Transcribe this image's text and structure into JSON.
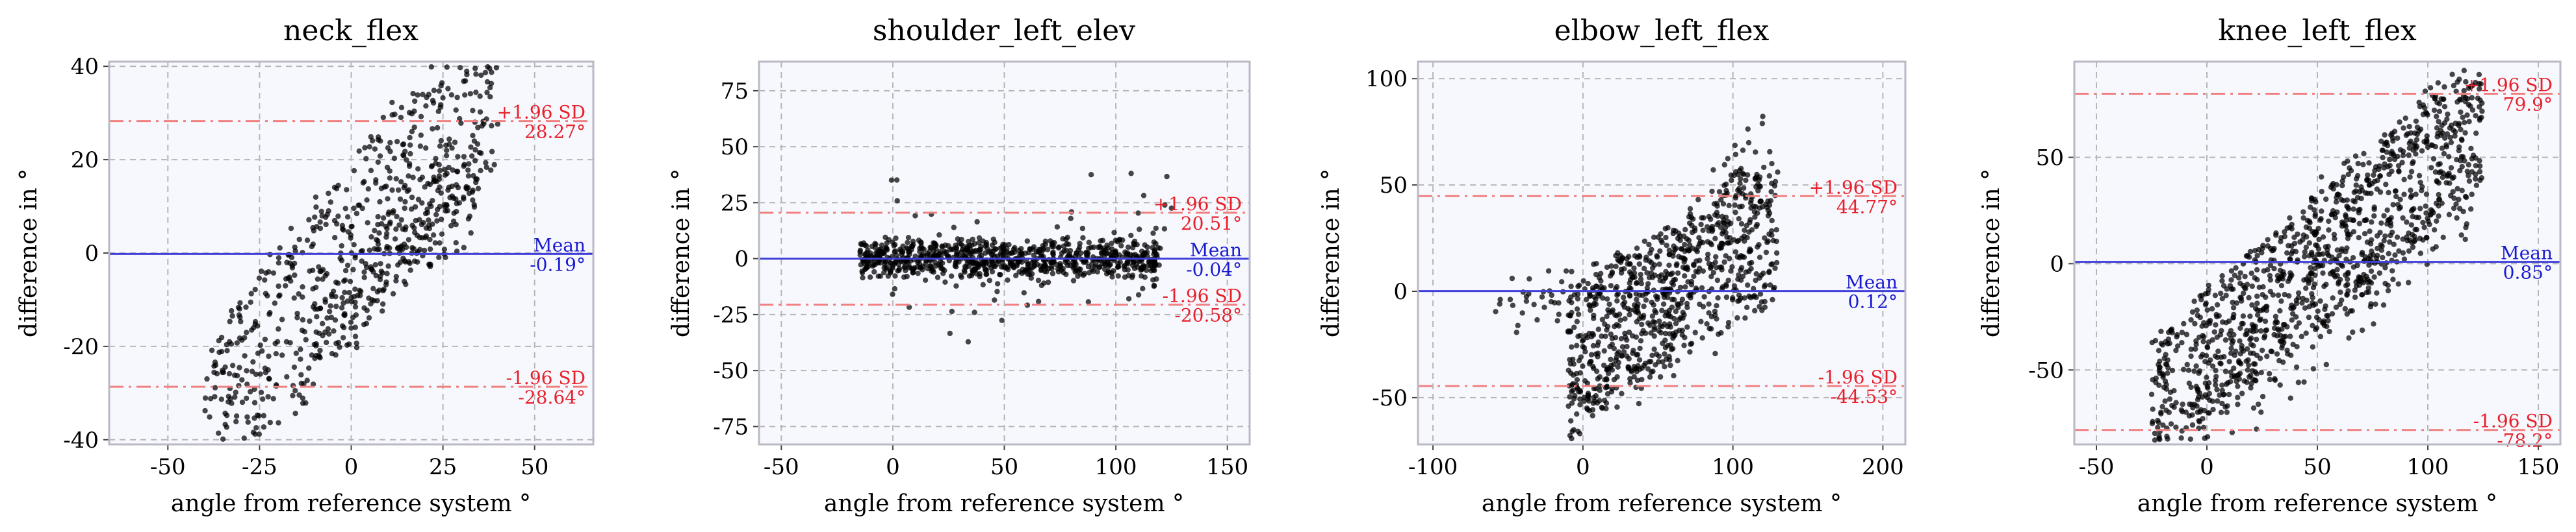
{
  "figure": {
    "colors": {
      "mean": "#3f3fd9",
      "limit": "#f08080",
      "annotation_limit": "#e8202a",
      "annotation_mean": "#1a1ad0",
      "point": "#000000"
    }
  },
  "chart_data": [
    {
      "type": "scatter",
      "title": "neck_flex",
      "xlabel": "angle from reference system °",
      "ylabel": "difference in °",
      "xlim": [
        -66,
        66
      ],
      "ylim": [
        -41,
        41
      ],
      "xticks": [
        -50,
        -25,
        0,
        25,
        50
      ],
      "yticks": [
        -40,
        -20,
        0,
        20,
        40
      ],
      "xtick_labels": [
        "-50",
        "-25",
        "0",
        "25",
        "50"
      ],
      "ytick_labels": [
        "-40",
        "-20",
        "0",
        "20",
        "40"
      ],
      "mean": -0.19,
      "upper_loa": 28.27,
      "lower_loa": -28.64,
      "annotations": {
        "upper_label": "+1.96 SD",
        "upper_value": "28.27°",
        "mean_label": "Mean",
        "mean_value": "-0.19°",
        "lower_label": "-1.96 SD",
        "lower_value": "-28.64°"
      },
      "clusters": [
        {
          "x": [
            -40,
            40
          ],
          "slope": 0.95,
          "spread": 18,
          "jitter": 2.5,
          "n": 650
        },
        {
          "x": [
            -10,
            35
          ],
          "slope": 0.6,
          "spread": 8,
          "jitter": 3,
          "n": 150
        }
      ]
    },
    {
      "type": "scatter",
      "title": "shoulder_left_elev",
      "xlabel": "angle from reference system °",
      "ylabel": "difference in °",
      "xlim": [
        -60,
        160
      ],
      "ylim": [
        -83,
        88
      ],
      "xticks": [
        -50,
        0,
        50,
        100,
        150
      ],
      "yticks": [
        -75,
        -50,
        -25,
        0,
        25,
        50,
        75
      ],
      "xtick_labels": [
        "-50",
        "0",
        "50",
        "100",
        "150"
      ],
      "ytick_labels": [
        "-75",
        "-50",
        "-25",
        "0",
        "25",
        "50",
        "75"
      ],
      "mean": -0.04,
      "upper_loa": 20.51,
      "lower_loa": -20.58,
      "annotations": {
        "upper_label": "+1.96 SD",
        "upper_value": "20.51°",
        "mean_label": "Mean",
        "mean_value": "-0.04°",
        "lower_label": "-1.96 SD",
        "lower_value": "-20.58°"
      },
      "clusters": [
        {
          "x": [
            -15,
            120
          ],
          "slope": 0,
          "spread": 6,
          "jitter": 3,
          "n": 750
        },
        {
          "x": [
            25,
            125
          ],
          "slope": 0.25,
          "spread": 25,
          "jitter": 10,
          "n": 60
        },
        {
          "x": [
            -5,
            25
          ],
          "slope": -1.4,
          "spread": 30,
          "jitter": 12,
          "n": 15
        }
      ]
    },
    {
      "type": "scatter",
      "title": "elbow_left_flex",
      "xlabel": "angle from reference system °",
      "ylabel": "difference in °",
      "xlim": [
        -110,
        215
      ],
      "ylim": [
        -72,
        108
      ],
      "xticks": [
        -100,
        0,
        100,
        200
      ],
      "yticks": [
        -50,
        0,
        50,
        100
      ],
      "xtick_labels": [
        "-100",
        "0",
        "100",
        "200"
      ],
      "ytick_labels": [
        "-50",
        "0",
        "50",
        "100"
      ],
      "mean": 0.12,
      "upper_loa": 44.77,
      "lower_loa": -44.53,
      "annotations": {
        "upper_label": "+1.96 SD",
        "upper_value": "44.77°",
        "mean_label": "Mean",
        "mean_value": "0.12°",
        "lower_label": "-1.96 SD",
        "lower_value": "-44.53°"
      },
      "clusters": [
        {
          "x": [
            -10,
            130
          ],
          "slope": 0.45,
          "spread": 30,
          "jitter": 8,
          "n": 650
        },
        {
          "x": [
            -10,
            120
          ],
          "slope": 0.9,
          "spread": 20,
          "jitter": 8,
          "n": 200
        },
        {
          "x": [
            -60,
            40
          ],
          "slope": 0.2,
          "spread": 10,
          "jitter": 5,
          "n": 60
        }
      ]
    },
    {
      "type": "scatter",
      "title": "knee_left_flex",
      "xlabel": "angle from reference system °",
      "ylabel": "difference in °",
      "xlim": [
        -60,
        160
      ],
      "ylim": [
        -85,
        95
      ],
      "xticks": [
        -50,
        0,
        50,
        100,
        150
      ],
      "yticks": [
        -50,
        0,
        50
      ],
      "xtick_labels": [
        "-50",
        "0",
        "50",
        "100",
        "150"
      ],
      "ytick_labels": [
        "-50",
        "0",
        "50"
      ],
      "mean": 0.85,
      "upper_loa": 79.9,
      "lower_loa": -78.2,
      "annotations": {
        "upper_label": "+1.96 SD",
        "upper_value": "79.9°",
        "mean_label": "Mean",
        "mean_value": "0.85°",
        "lower_label": "-1.96 SD",
        "lower_value": "-78.2°"
      },
      "clusters": [
        {
          "x": [
            -25,
            125
          ],
          "slope": 0.9,
          "spread": 30,
          "jitter": 3,
          "n": 900
        },
        {
          "x": [
            -5,
            120
          ],
          "slope": 0.95,
          "spread": 40,
          "jitter": 4,
          "n": 300
        }
      ]
    }
  ]
}
